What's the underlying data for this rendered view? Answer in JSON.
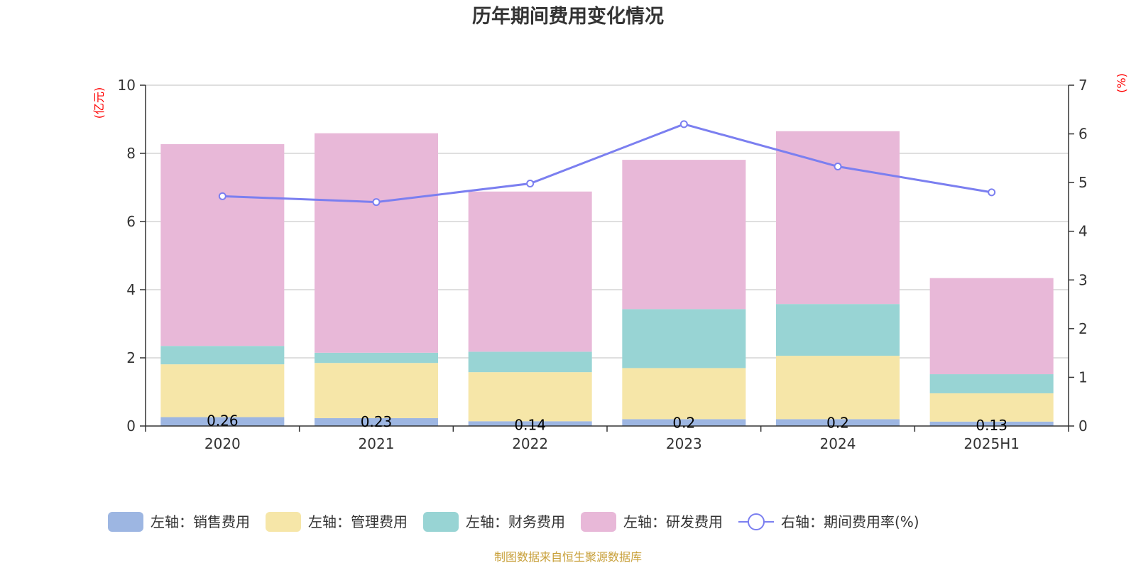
{
  "chart_data": {
    "type": "bar",
    "stacked": true,
    "title": "历年期间费用变化情况",
    "categories": [
      "2020",
      "2021",
      "2022",
      "2023",
      "2024",
      "2025H1"
    ],
    "left_axis": {
      "unit": "(亿元)",
      "ylim": [
        0,
        10
      ],
      "ticks": [
        "0",
        "2",
        "4",
        "6",
        "8",
        "10"
      ]
    },
    "right_axis": {
      "unit": "(%)",
      "ylim": [
        0,
        7
      ],
      "ticks": [
        "0",
        "1",
        "2",
        "3",
        "4",
        "5",
        "6",
        "7"
      ]
    },
    "series": [
      {
        "name": "左轴：销售费用",
        "axis": "left",
        "type": "bar",
        "color": "#9db6e2",
        "values": [
          0.26,
          0.23,
          0.14,
          0.2,
          0.2,
          0.13
        ],
        "labels": [
          "0.26",
          "0.23",
          "0.14",
          "0.2",
          "0.2",
          "0.13"
        ]
      },
      {
        "name": "左轴：管理费用",
        "axis": "left",
        "type": "bar",
        "color": "#f6e6a8",
        "values": [
          1.55,
          1.62,
          1.44,
          1.5,
          1.86,
          0.83
        ]
      },
      {
        "name": "左轴：财务费用",
        "axis": "left",
        "type": "bar",
        "color": "#98d4d4",
        "values": [
          0.54,
          0.3,
          0.6,
          1.73,
          1.52,
          0.56
        ]
      },
      {
        "name": "左轴：研发费用",
        "axis": "left",
        "type": "bar",
        "color": "#e8b8d8",
        "values": [
          5.92,
          6.44,
          4.7,
          4.38,
          5.07,
          2.82
        ]
      },
      {
        "name": "右轴：期间费用率(%)",
        "axis": "right",
        "type": "line",
        "color": "#7b7ff0",
        "values": [
          4.72,
          4.6,
          4.98,
          6.2,
          5.33,
          4.8
        ]
      }
    ],
    "grid": true,
    "legend_position": "bottom"
  },
  "footer": {
    "source": "制图数据来自恒生聚源数据库"
  }
}
